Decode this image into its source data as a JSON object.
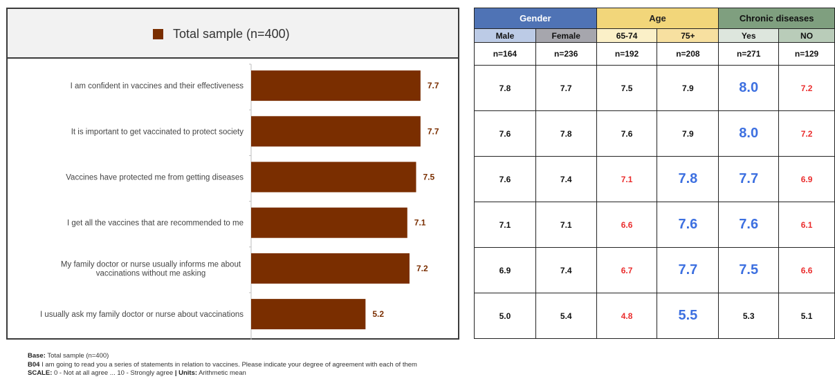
{
  "chart_data": {
    "type": "bar",
    "orientation": "horizontal",
    "legend": "Total sample (n=400)",
    "categories": [
      "I am confident in vaccines and their effectiveness",
      "It is important to get vaccinated to protect society",
      "Vaccines have protected me from getting diseases",
      "I get all the vaccines that are recommended to me",
      "My family doctor or nurse usually informs me about vaccinations without me asking",
      "I usually ask my family doctor or nurse about vaccinations"
    ],
    "category_lines": [
      [
        "I am confident in vaccines and their effectiveness"
      ],
      [
        "It is important to get vaccinated to protect society"
      ],
      [
        "Vaccines have protected me from getting diseases"
      ],
      [
        "I get all the vaccines that are recommended to me"
      ],
      [
        "My family doctor or nurse usually informs me about",
        "vaccinations without me asking"
      ],
      [
        "I usually ask my family doctor or nurse about vaccinations"
      ]
    ],
    "values": [
      7.7,
      7.7,
      7.5,
      7.1,
      7.2,
      5.2
    ],
    "value_labels": [
      "7.7",
      "7.7",
      "7.5",
      "7.1",
      "7.2",
      "5.2"
    ],
    "xlim": [
      0,
      10
    ],
    "colors": {
      "bar": "#7a2e00",
      "label": "#7a2e00"
    }
  },
  "table": {
    "groups": [
      {
        "label": "Gender",
        "bg": "#4f73b5",
        "fg": "#ffffff"
      },
      {
        "label": "Age",
        "bg": "#f2d67a",
        "fg": "#222222"
      },
      {
        "label": "Chronic diseases",
        "bg": "#7f9f7f",
        "fg": "#111111"
      }
    ],
    "subheaders": [
      {
        "label": "Male",
        "bg": "#bccbe6"
      },
      {
        "label": "Female",
        "bg": "#a6a6ad"
      },
      {
        "label": "65-74",
        "bg": "#fbf0c8"
      },
      {
        "label": "75+",
        "bg": "#f7e0a0"
      },
      {
        "label": "Yes",
        "bg": "#dde6dd"
      },
      {
        "label": "NO",
        "bg": "#b9ccb9"
      }
    ],
    "n_values": [
      "n=164",
      "n=236",
      "n=192",
      "n=208",
      "n=271",
      "n=129"
    ],
    "rows": [
      [
        {
          "v": "7.8",
          "s": "n"
        },
        {
          "v": "7.7",
          "s": "n"
        },
        {
          "v": "7.5",
          "s": "n"
        },
        {
          "v": "7.9",
          "s": "n"
        },
        {
          "v": "8.0",
          "s": "hi"
        },
        {
          "v": "7.2",
          "s": "lo"
        }
      ],
      [
        {
          "v": "7.6",
          "s": "n"
        },
        {
          "v": "7.8",
          "s": "n"
        },
        {
          "v": "7.6",
          "s": "n"
        },
        {
          "v": "7.9",
          "s": "n"
        },
        {
          "v": "8.0",
          "s": "hi"
        },
        {
          "v": "7.2",
          "s": "lo"
        }
      ],
      [
        {
          "v": "7.6",
          "s": "n"
        },
        {
          "v": "7.4",
          "s": "n"
        },
        {
          "v": "7.1",
          "s": "lo"
        },
        {
          "v": "7.8",
          "s": "hi"
        },
        {
          "v": "7.7",
          "s": "hi"
        },
        {
          "v": "6.9",
          "s": "lo"
        }
      ],
      [
        {
          "v": "7.1",
          "s": "n"
        },
        {
          "v": "7.1",
          "s": "n"
        },
        {
          "v": "6.6",
          "s": "lo"
        },
        {
          "v": "7.6",
          "s": "hi"
        },
        {
          "v": "7.6",
          "s": "hi"
        },
        {
          "v": "6.1",
          "s": "lo"
        }
      ],
      [
        {
          "v": "6.9",
          "s": "n"
        },
        {
          "v": "7.4",
          "s": "n"
        },
        {
          "v": "6.7",
          "s": "lo"
        },
        {
          "v": "7.7",
          "s": "hi"
        },
        {
          "v": "7.5",
          "s": "hi"
        },
        {
          "v": "6.6",
          "s": "lo"
        }
      ],
      [
        {
          "v": "5.0",
          "s": "n"
        },
        {
          "v": "5.4",
          "s": "n"
        },
        {
          "v": "4.8",
          "s": "lo"
        },
        {
          "v": "5.5",
          "s": "hi"
        },
        {
          "v": "5.3",
          "s": "n"
        },
        {
          "v": "5.1",
          "s": "n"
        }
      ]
    ]
  },
  "footer": {
    "base_label": "Base:",
    "base_text": " Total sample (n=400)",
    "question_label": "B04",
    "question_text": " I am going to read you a series of statements in relation to vaccines. Please indicate your degree of agreement with each of them",
    "scale_label": "SCALE:",
    "scale_text": " 0 - Not at all agree ... 10 - Strongly agree ",
    "units_label": "| Units:",
    "units_text": " Arithmetic mean"
  }
}
